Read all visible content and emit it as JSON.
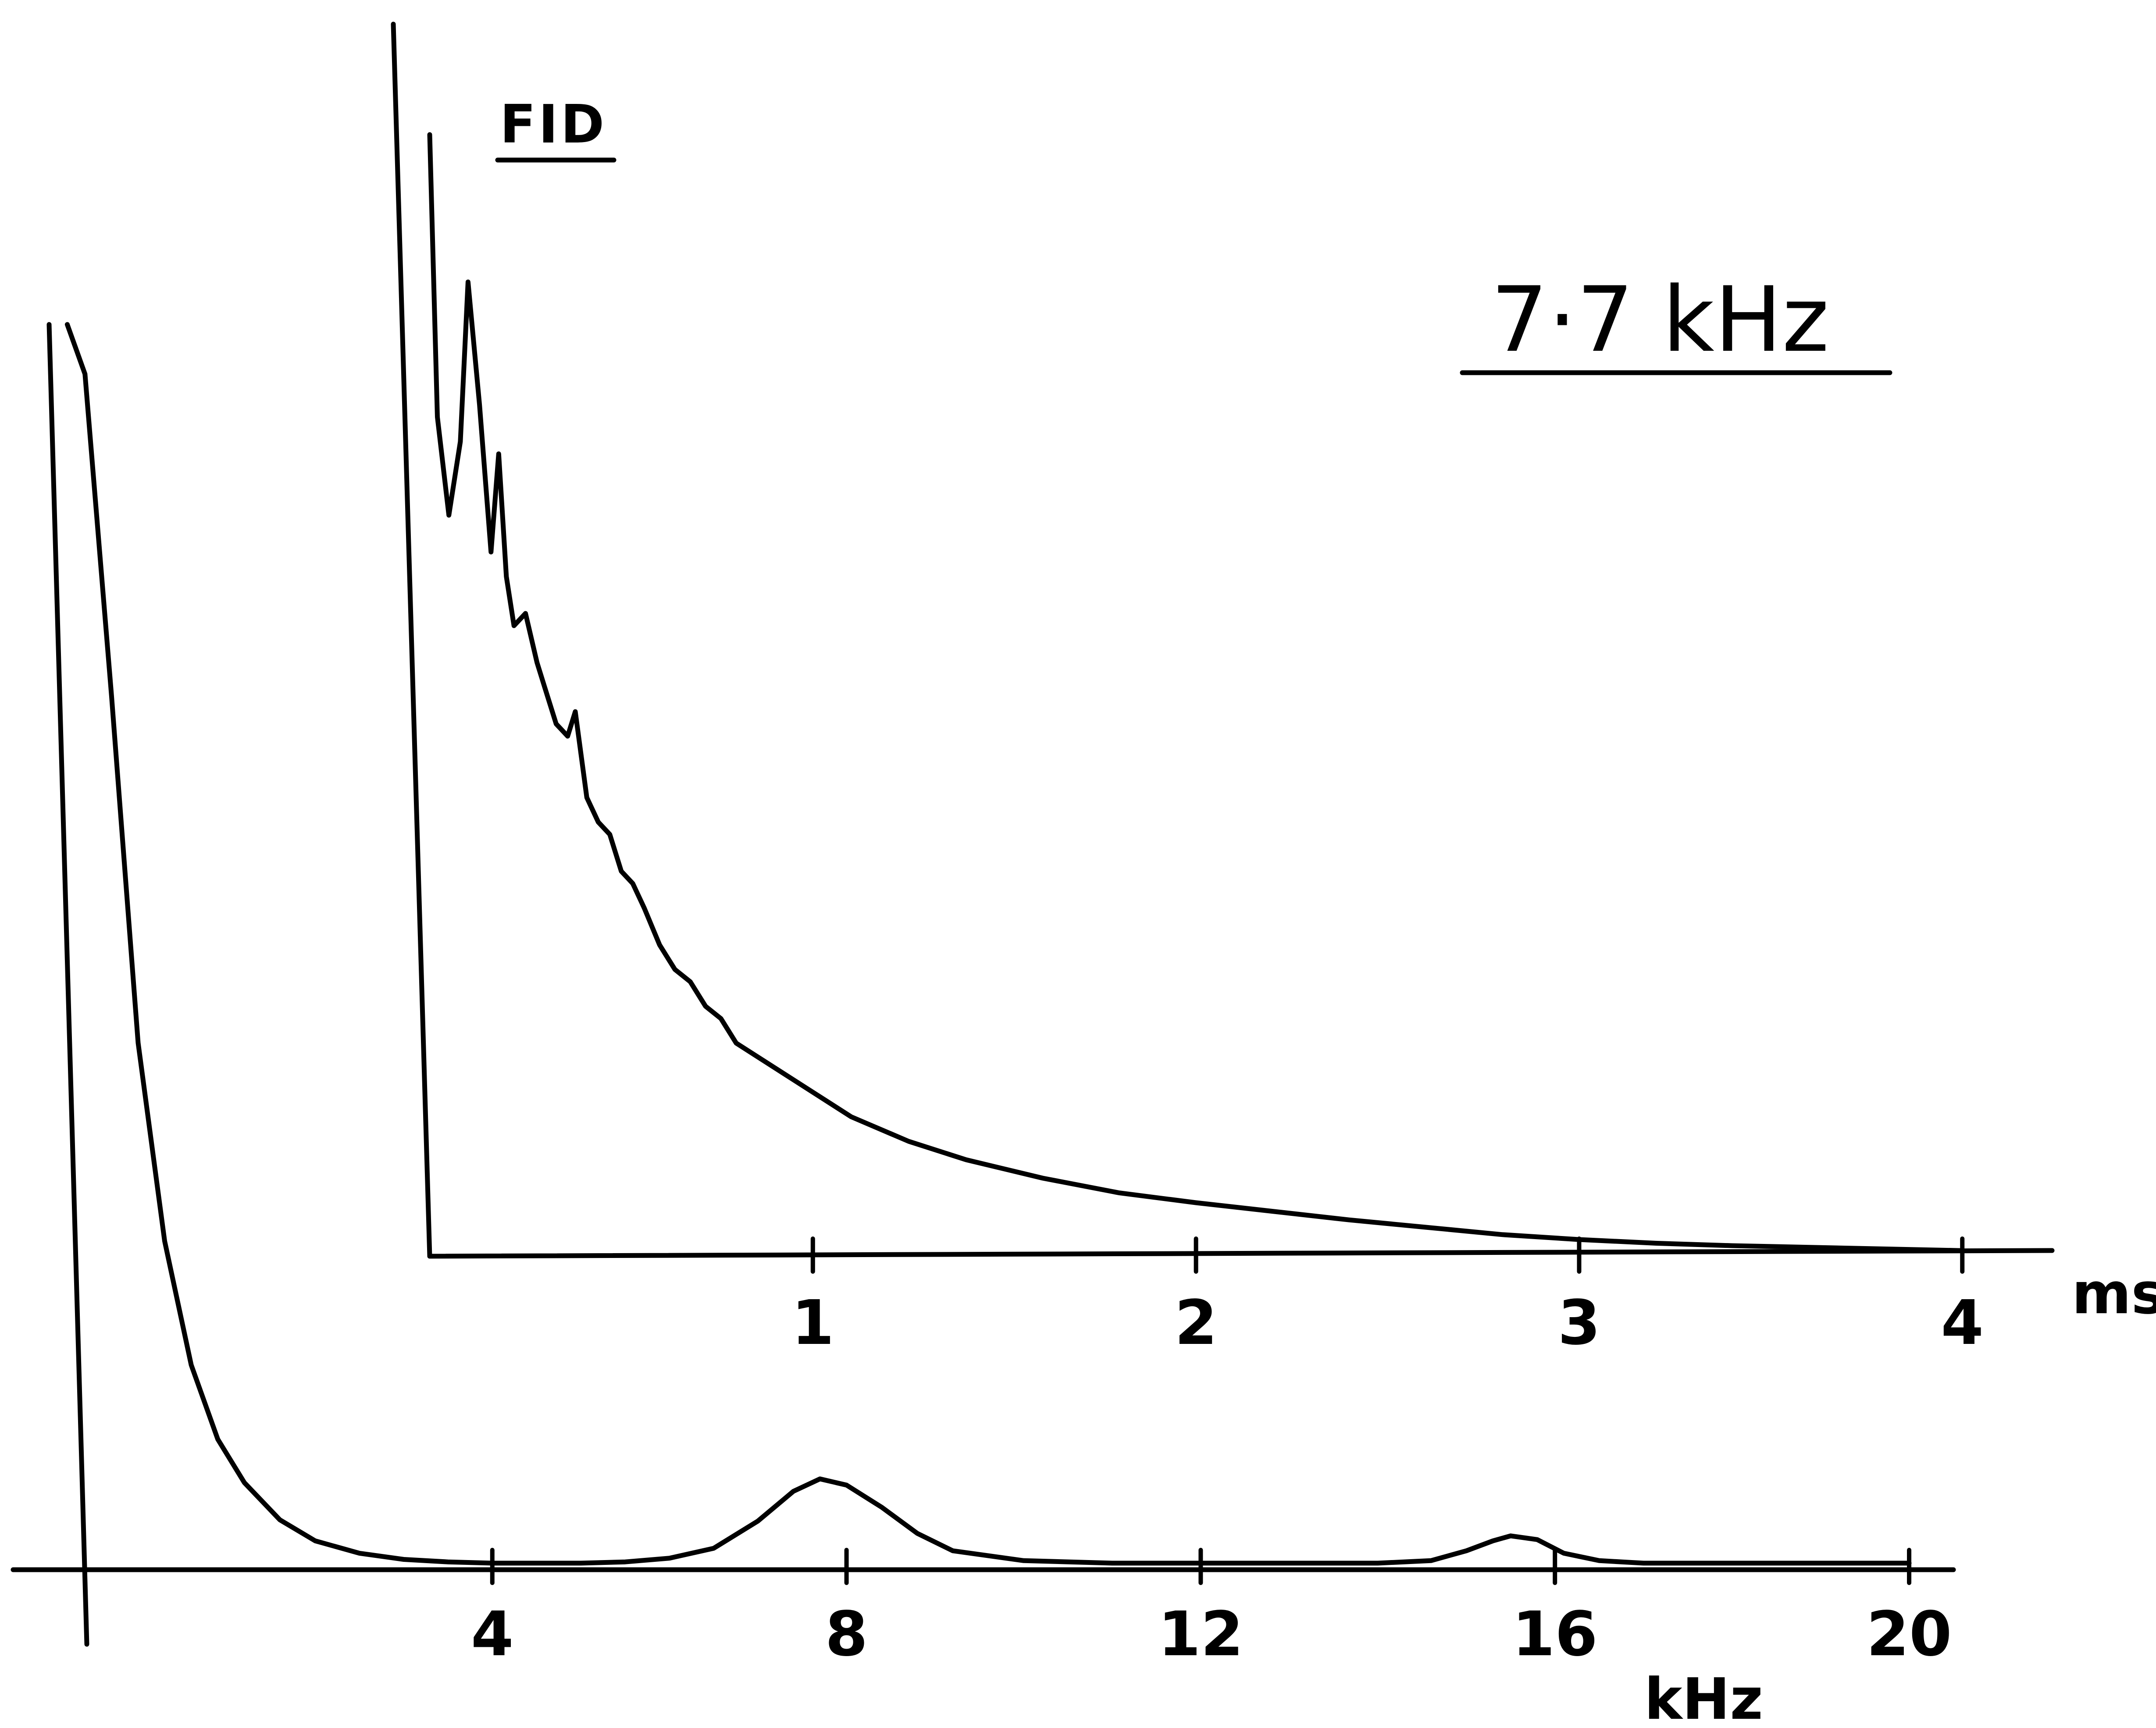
{
  "chart_data": [
    {
      "type": "line",
      "title": "",
      "xlabel": "kHz",
      "ylabel": "",
      "xlim": [
        -1,
        20.5
      ],
      "ylim": [
        0,
        1
      ],
      "grid": false,
      "x_ticks": [
        4,
        8,
        12,
        16,
        20
      ],
      "x_tick_labels": [
        "4",
        "8",
        "12",
        "16",
        "20"
      ],
      "series": [
        {
          "x": [
            -0.8,
            -0.6,
            -0.3,
            0.0,
            0.3,
            0.6,
            0.9,
            1.2,
            1.6,
            2.0,
            2.5,
            3.0,
            3.5,
            4.0,
            4.5,
            5.0,
            5.5,
            6.0,
            6.5,
            7.0,
            7.4,
            7.7,
            8.0,
            8.4,
            8.8,
            9.2,
            10.0,
            11.0,
            12.0,
            13.0,
            14.0,
            14.6,
            15.0,
            15.3,
            15.5,
            15.8,
            16.1,
            16.5,
            17.0,
            18.0,
            19.0,
            20.0
          ],
          "y": [
            1.0,
            0.96,
            0.7,
            0.42,
            0.26,
            0.16,
            0.1,
            0.065,
            0.035,
            0.018,
            0.008,
            0.003,
            0.001,
            0.0,
            0.0,
            0.0,
            0.001,
            0.004,
            0.012,
            0.034,
            0.058,
            0.068,
            0.063,
            0.045,
            0.024,
            0.01,
            0.002,
            0.0,
            0.0,
            0.0,
            0.0,
            0.002,
            0.01,
            0.018,
            0.022,
            0.019,
            0.008,
            0.002,
            0.0,
            0.0,
            0.0,
            0.0
          ]
        }
      ]
    },
    {
      "type": "line",
      "title": "FID",
      "xlabel": "ms",
      "ylabel": "",
      "xlim": [
        0,
        4.2
      ],
      "ylim": [
        0,
        1
      ],
      "grid": false,
      "x_ticks": [
        1,
        2,
        3,
        4
      ],
      "x_tick_labels": [
        "1",
        "2",
        "3",
        "4"
      ],
      "series": [
        {
          "x": [
            0.0,
            0.02,
            0.05,
            0.08,
            0.1,
            0.13,
            0.16,
            0.18,
            0.2,
            0.22,
            0.25,
            0.28,
            0.3,
            0.33,
            0.36,
            0.38,
            0.41,
            0.44,
            0.47,
            0.5,
            0.53,
            0.56,
            0.6,
            0.64,
            0.68,
            0.72,
            0.76,
            0.8,
            0.85,
            0.9,
            0.95,
            1.0,
            1.1,
            1.25,
            1.4,
            1.6,
            1.8,
            2.0,
            2.2,
            2.4,
            2.6,
            2.8,
            3.0,
            3.2,
            3.4,
            3.7,
            4.0
          ],
          "y": [
            0.91,
            0.68,
            0.6,
            0.66,
            0.79,
            0.69,
            0.57,
            0.65,
            0.55,
            0.51,
            0.52,
            0.48,
            0.46,
            0.43,
            0.42,
            0.44,
            0.37,
            0.35,
            0.34,
            0.31,
            0.3,
            0.28,
            0.25,
            0.23,
            0.22,
            0.2,
            0.19,
            0.17,
            0.16,
            0.15,
            0.14,
            0.13,
            0.11,
            0.09,
            0.075,
            0.06,
            0.048,
            0.04,
            0.033,
            0.026,
            0.02,
            0.014,
            0.01,
            0.007,
            0.005,
            0.003,
            0.001
          ]
        }
      ]
    }
  ],
  "annotations": {
    "frequency_label": "7·7 kHz"
  }
}
